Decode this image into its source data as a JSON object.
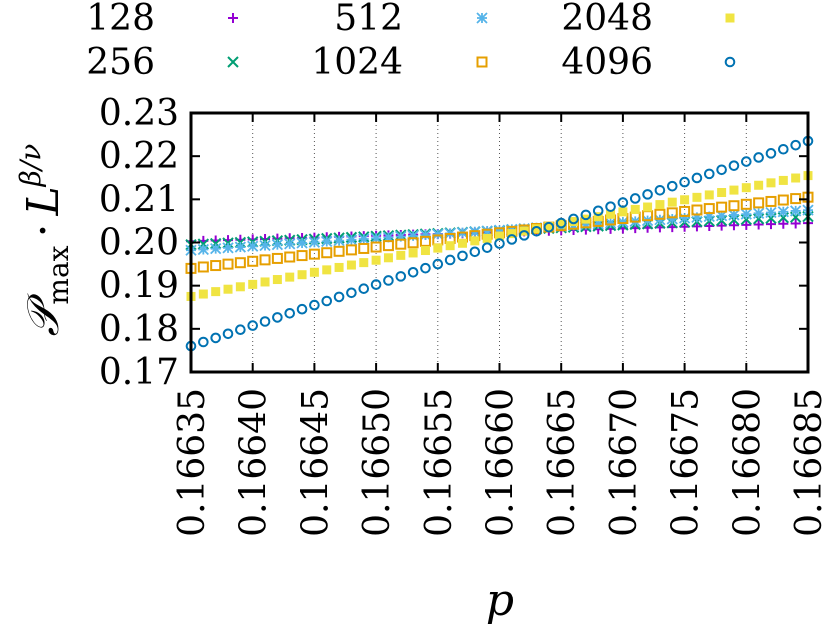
{
  "chart_data": {
    "type": "scatter",
    "xlabel": "p",
    "ylabel_parts": {
      "base": "𝒫",
      "sub": "max",
      "dot": "·",
      "L": "L",
      "exp": "β/ν"
    },
    "xlim": [
      0.16635,
      0.16685
    ],
    "ylim": [
      0.17,
      0.23
    ],
    "xticks": [
      "0.16635",
      "0.16640",
      "0.16645",
      "0.16650",
      "0.16655",
      "0.16660",
      "0.16665",
      "0.16670",
      "0.16675",
      "0.16680",
      "0.16685"
    ],
    "xtick_values": [
      0.16635,
      0.1664,
      0.16645,
      0.1665,
      0.16655,
      0.1666,
      0.16665,
      0.1667,
      0.16675,
      0.1668,
      0.16685
    ],
    "yticks": [
      "0.17",
      "0.18",
      "0.19",
      "0.20",
      "0.21",
      "0.22",
      "0.23"
    ],
    "ytick_values": [
      0.17,
      0.18,
      0.19,
      0.2,
      0.21,
      0.22,
      0.23
    ],
    "grid": "vertical dotted",
    "legend_position": "top, outside plot",
    "x_start": 0.16635,
    "x_end": 0.16685,
    "n_points": 51,
    "series": [
      {
        "name": "128",
        "marker": "plus",
        "color": "#9400d3",
        "y_start": 0.2003,
        "y_end": 0.2045
      },
      {
        "name": "256",
        "marker": "cross",
        "color": "#009e73",
        "y_start": 0.1995,
        "y_end": 0.206
      },
      {
        "name": "512",
        "marker": "star",
        "color": "#56b4e9",
        "y_start": 0.1982,
        "y_end": 0.2075
      },
      {
        "name": "1024",
        "marker": "open-square",
        "color": "#e69f00",
        "y_start": 0.194,
        "y_end": 0.2105
      },
      {
        "name": "2048",
        "marker": "filled-square",
        "color": "#f0e442",
        "y_start": 0.1875,
        "y_end": 0.2155
      },
      {
        "name": "4096",
        "marker": "open-circle",
        "color": "#0072b2",
        "y_start": 0.176,
        "y_end": 0.2235
      }
    ]
  }
}
